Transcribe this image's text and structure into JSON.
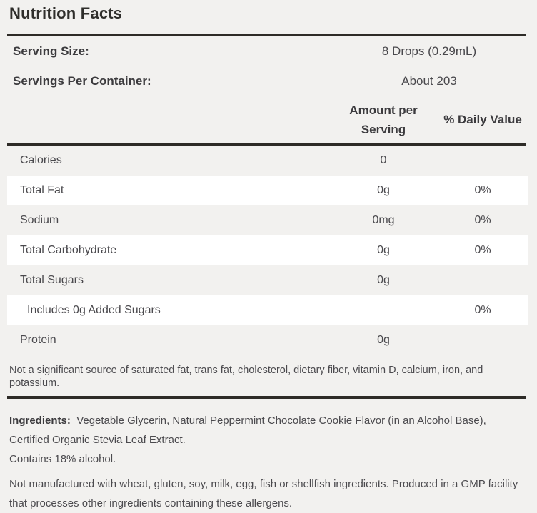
{
  "title": "Nutrition Facts",
  "colors": {
    "background": "#f2f1ef",
    "stripe": "#ffffff",
    "rule": "#2e2b27",
    "heading_text": "#3c3b3e",
    "body_text": "#4b4a4e"
  },
  "serving_info": [
    {
      "label": "Serving Size:",
      "value": "8 Drops (0.29mL)"
    },
    {
      "label": "Servings Per Container:",
      "value": "About 203"
    }
  ],
  "columns": {
    "amount_line1": "Amount per",
    "amount_line2": "Serving",
    "daily": "% Daily Value"
  },
  "rows": [
    {
      "label": "Calories",
      "amount": "0",
      "daily": ""
    },
    {
      "label": "Total Fat",
      "amount": "0g",
      "daily": "0%"
    },
    {
      "label": "Sodium",
      "amount": "0mg",
      "daily": "0%"
    },
    {
      "label": "Total Carbohydrate",
      "amount": "0g",
      "daily": "0%"
    },
    {
      "label": "Total Sugars",
      "amount": "0g",
      "daily": ""
    },
    {
      "label": "Includes 0g Added Sugars",
      "amount": "",
      "daily": "0%"
    },
    {
      "label": "Protein",
      "amount": "0g",
      "daily": ""
    }
  ],
  "footnote": "Not a significant source of saturated fat, trans fat, cholesterol, dietary fiber, vitamin D, calcium, iron, and potassium.",
  "ingredients": {
    "label": "Ingredients:",
    "text": "Vegetable Glycerin, Natural Peppermint Chocolate Cookie Flavor (in an Alcohol Base), Certified Organic Stevia Leaf Extract."
  },
  "alcohol_note": "Contains 18% alcohol.",
  "allergen_note": "Not manufactured with wheat, gluten, soy, milk, egg, fish or shellfish ingredients. Produced in a GMP facility that processes other ingredients containing these allergens."
}
